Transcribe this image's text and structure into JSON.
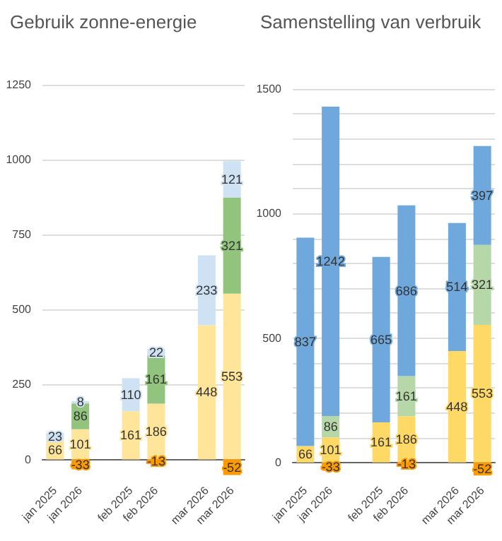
{
  "chart_data": [
    {
      "type": "bar",
      "title": "Gebruik zonne-energie",
      "stacked": true,
      "data_labels": true,
      "grid": "y",
      "categories": [
        "jan 2025",
        "jan 2026",
        null,
        "feb 2025",
        "feb 2026",
        null,
        "mar 2026",
        "mar 2026"
      ],
      "ylim": [
        -60,
        1250
      ],
      "yticks": [
        0,
        250,
        500,
        750,
        1000,
        1250
      ],
      "series": [
        {
          "color": "#ffe599",
          "values": [
            66,
            101,
            null,
            161,
            186,
            null,
            448,
            553
          ]
        },
        {
          "color": "#93c47d",
          "values": [
            null,
            86,
            null,
            null,
            161,
            null,
            null,
            321
          ]
        },
        {
          "color": "#cfe2f3",
          "values": [
            23,
            8,
            null,
            110,
            22,
            null,
            233,
            121
          ]
        },
        {
          "color": "#ff9900",
          "values": [
            null,
            -33,
            null,
            null,
            -13,
            null,
            null,
            -52
          ]
        }
      ]
    },
    {
      "type": "bar",
      "title": "Samenstelling van verbruik",
      "stacked": true,
      "data_labels": true,
      "grid": "y",
      "categories": [
        "jan 2025",
        "jan 2026",
        null,
        "feb 2025",
        "feb 2026",
        null,
        "mar 2026",
        "mar 2026"
      ],
      "ylim": [
        -60,
        1500
      ],
      "yticks": [
        0,
        {
          "value": 100,
          "label": null
        },
        {
          "value": 200,
          "label": null
        },
        {
          "value": 300,
          "label": null
        },
        {
          "value": 400,
          "label": null
        },
        500,
        {
          "value": 600,
          "label": null
        },
        {
          "value": 700,
          "label": null
        },
        {
          "value": 800,
          "label": null
        },
        {
          "value": 900,
          "label": null
        },
        1000,
        {
          "value": 1100,
          "label": null
        },
        {
          "value": 1200,
          "label": null
        },
        {
          "value": 1300,
          "label": null
        },
        {
          "value": 1400,
          "label": null
        },
        1500
      ],
      "series": [
        {
          "color": "#ffd966",
          "values": [
            66,
            101,
            null,
            161,
            186,
            null,
            448,
            553
          ]
        },
        {
          "color": "#b6d7a8",
          "values": [
            null,
            86,
            null,
            null,
            161,
            null,
            null,
            321
          ]
        },
        {
          "color": "#6fa8dc",
          "values": [
            837,
            1242,
            null,
            665,
            686,
            null,
            514,
            397
          ]
        },
        {
          "color": "#ff9900",
          "values": [
            null,
            -33,
            null,
            null,
            -13,
            null,
            null,
            -52
          ]
        }
      ]
    }
  ]
}
